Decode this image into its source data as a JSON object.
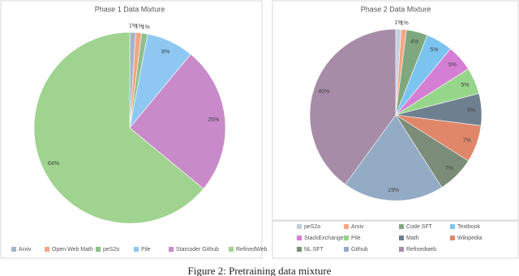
{
  "chart_data": [
    {
      "type": "pie",
      "title": "Phase 1 Data Mixture",
      "categories": [
        "Arxiv",
        "Open Web Math",
        "peS2o",
        "Pile",
        "Starcoder Github",
        "RefinedWeb"
      ],
      "values": [
        1,
        1,
        1,
        8,
        25,
        64
      ],
      "value_labels": [
        "1%",
        "1%",
        "1%",
        "8%",
        "25%",
        "64%"
      ],
      "colors": [
        "#a3b4cc",
        "#f4a582",
        "#8cbf8c",
        "#8ec8f2",
        "#c98ac9",
        "#9fd38f"
      ]
    },
    {
      "type": "pie",
      "title": "Phase 2 Data Mixture",
      "categories": [
        "peS2o",
        "Arxiv",
        "Code SFT",
        "Textbook",
        "StackExchange",
        "Pile",
        "Math",
        "Wikipedia",
        "NL SFT",
        "Github",
        "Refinedweb"
      ],
      "values": [
        1,
        1,
        4,
        5,
        5,
        5,
        6,
        7,
        7,
        19,
        40
      ],
      "value_labels": [
        "1%",
        "1%",
        "4%",
        "5%",
        "5%",
        "5%",
        "6%",
        "7%",
        "7%",
        "19%",
        "40%"
      ],
      "colors": [
        "#c3cfe2",
        "#f4a582",
        "#7fa87f",
        "#7cc4f0",
        "#d47ed4",
        "#96d68a",
        "#6e7f90",
        "#e0876a",
        "#7b8c78",
        "#94abc6",
        "#a78ca8"
      ]
    }
  ],
  "caption": "Figure 2: Pretraining data mixture"
}
